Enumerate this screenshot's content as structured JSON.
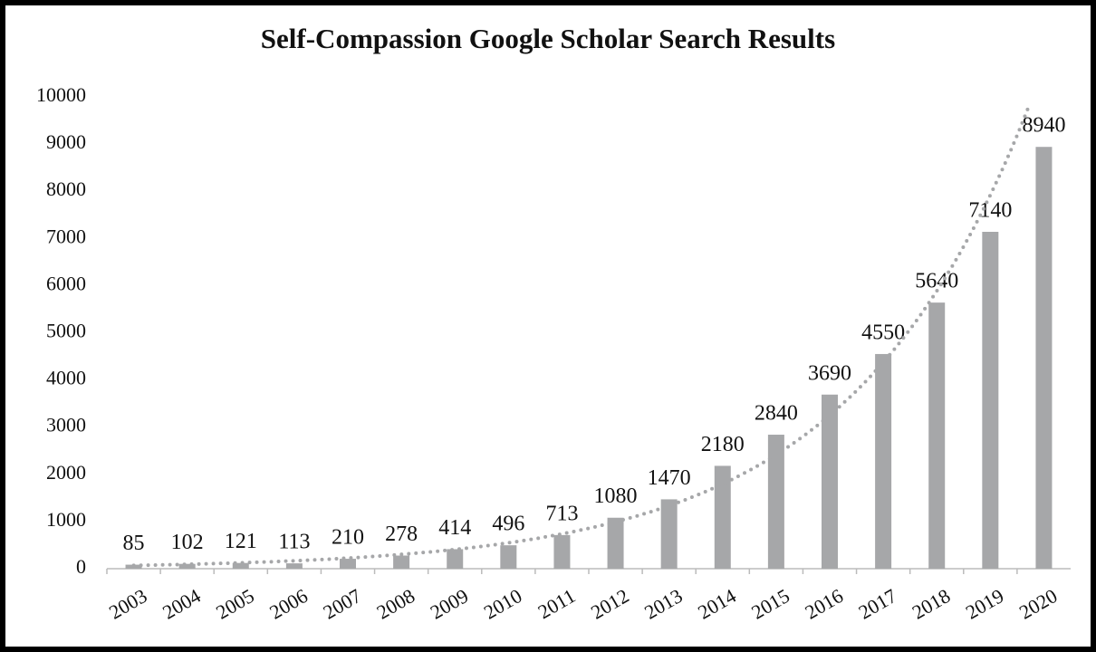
{
  "chart_data": {
    "type": "bar",
    "title": "Self-Compassion Google Scholar Search Results",
    "categories": [
      "2003",
      "2004",
      "2005",
      "2006",
      "2007",
      "2008",
      "2009",
      "2010",
      "2011",
      "2012",
      "2013",
      "2014",
      "2015",
      "2016",
      "2017",
      "2018",
      "2019",
      "2020"
    ],
    "values": [
      85,
      102,
      121,
      113,
      210,
      278,
      414,
      496,
      713,
      1080,
      1470,
      2180,
      2840,
      3690,
      4550,
      5640,
      7140,
      8940
    ],
    "color": "#a6a7a9",
    "ylim": [
      0,
      10000
    ],
    "yticks": [
      0,
      1000,
      2000,
      3000,
      4000,
      5000,
      6000,
      7000,
      8000,
      9000,
      10000
    ],
    "grid": false,
    "trendline": "exponential",
    "trendline_color": "#a6a7a9"
  }
}
